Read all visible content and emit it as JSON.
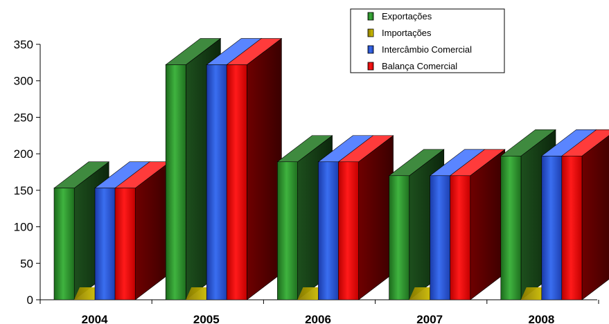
{
  "chart_data": {
    "type": "bar",
    "categories": [
      "2004",
      "2005",
      "2006",
      "2007",
      "2008"
    ],
    "series": [
      {
        "name": "Exportações",
        "values": [
          153,
          322,
          189,
          170,
          197
        ],
        "color": "#2e8b2e"
      },
      {
        "name": "Importações",
        "values": [
          0,
          0,
          0,
          0,
          0
        ],
        "color": "#d4c400"
      },
      {
        "name": "Intercâmbio Comercial",
        "values": [
          153,
          322,
          189,
          170,
          197
        ],
        "color": "#2255dd"
      },
      {
        "name": "Balança Comercial",
        "values": [
          153,
          322,
          189,
          170,
          197
        ],
        "color": "#ee0000"
      }
    ],
    "yticks": [
      "0",
      "50",
      "100",
      "150",
      "200",
      "250",
      "300",
      "350"
    ],
    "ylim": [
      0,
      350
    ],
    "legend_position": "top-right",
    "grid": false
  }
}
